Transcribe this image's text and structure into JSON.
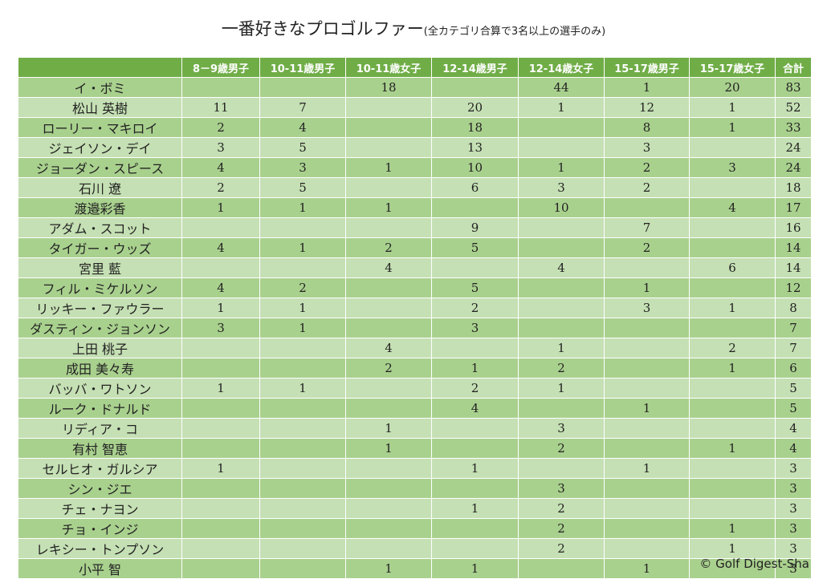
{
  "header": {
    "title": "一番好きなプロゴルファー",
    "subtitle": "(全カテゴリ合算で3名以上の選手のみ)"
  },
  "table": {
    "columns": [
      "8－9歳男子",
      "10-11歳男子",
      "10-11歳女子",
      "12-14歳男子",
      "12-14歳女子",
      "15-17歳男子",
      "15-17歳女子",
      "合計"
    ],
    "rows": [
      [
        "イ・ボミ",
        null,
        null,
        18,
        null,
        44,
        1,
        20,
        83
      ],
      [
        "松山 英樹",
        11,
        7,
        null,
        20,
        1,
        12,
        1,
        52
      ],
      [
        "ローリー・マキロイ",
        2,
        4,
        null,
        18,
        null,
        8,
        1,
        33
      ],
      [
        "ジェイソン・デイ",
        3,
        5,
        null,
        13,
        null,
        3,
        null,
        24
      ],
      [
        "ジョーダン・スピース",
        4,
        3,
        1,
        10,
        1,
        2,
        3,
        24
      ],
      [
        "石川 遼",
        2,
        5,
        null,
        6,
        3,
        2,
        null,
        18
      ],
      [
        "渡邉彩香",
        1,
        1,
        1,
        null,
        10,
        null,
        4,
        17
      ],
      [
        "アダム・スコット",
        null,
        null,
        null,
        9,
        null,
        7,
        null,
        16
      ],
      [
        "タイガー・ウッズ",
        4,
        1,
        2,
        5,
        null,
        2,
        null,
        14
      ],
      [
        "宮里 藍",
        null,
        null,
        4,
        null,
        4,
        null,
        6,
        14
      ],
      [
        "フィル・ミケルソン",
        4,
        2,
        null,
        5,
        null,
        1,
        null,
        12
      ],
      [
        "リッキー・ファウラー",
        1,
        1,
        null,
        2,
        null,
        3,
        1,
        8
      ],
      [
        "ダスティン・ジョンソン",
        3,
        1,
        null,
        3,
        null,
        null,
        null,
        7
      ],
      [
        "上田 桃子",
        null,
        null,
        4,
        null,
        1,
        null,
        2,
        7
      ],
      [
        "成田 美々寿",
        null,
        null,
        2,
        1,
        2,
        null,
        1,
        6
      ],
      [
        "バッバ・ワトソン",
        1,
        1,
        null,
        2,
        1,
        null,
        null,
        5
      ],
      [
        "ルーク・ドナルド",
        null,
        null,
        null,
        4,
        null,
        1,
        null,
        5
      ],
      [
        "リディア・コ",
        null,
        null,
        1,
        null,
        3,
        null,
        null,
        4
      ],
      [
        "有村 智恵",
        null,
        null,
        1,
        null,
        2,
        null,
        1,
        4
      ],
      [
        "セルヒオ・ガルシア",
        1,
        null,
        null,
        1,
        null,
        1,
        null,
        3
      ],
      [
        "シン・ジエ",
        null,
        null,
        null,
        null,
        3,
        null,
        null,
        3
      ],
      [
        "チェ・ナヨン",
        null,
        null,
        null,
        1,
        2,
        null,
        null,
        3
      ],
      [
        "チョ・インジ",
        null,
        null,
        null,
        null,
        2,
        null,
        1,
        3
      ],
      [
        "レキシー・トンプソン",
        null,
        null,
        null,
        null,
        2,
        null,
        1,
        3
      ],
      [
        "小平 智",
        null,
        null,
        1,
        1,
        null,
        1,
        null,
        3
      ]
    ]
  },
  "footer": {
    "copyright": "© Golf Digest-Sha"
  }
}
